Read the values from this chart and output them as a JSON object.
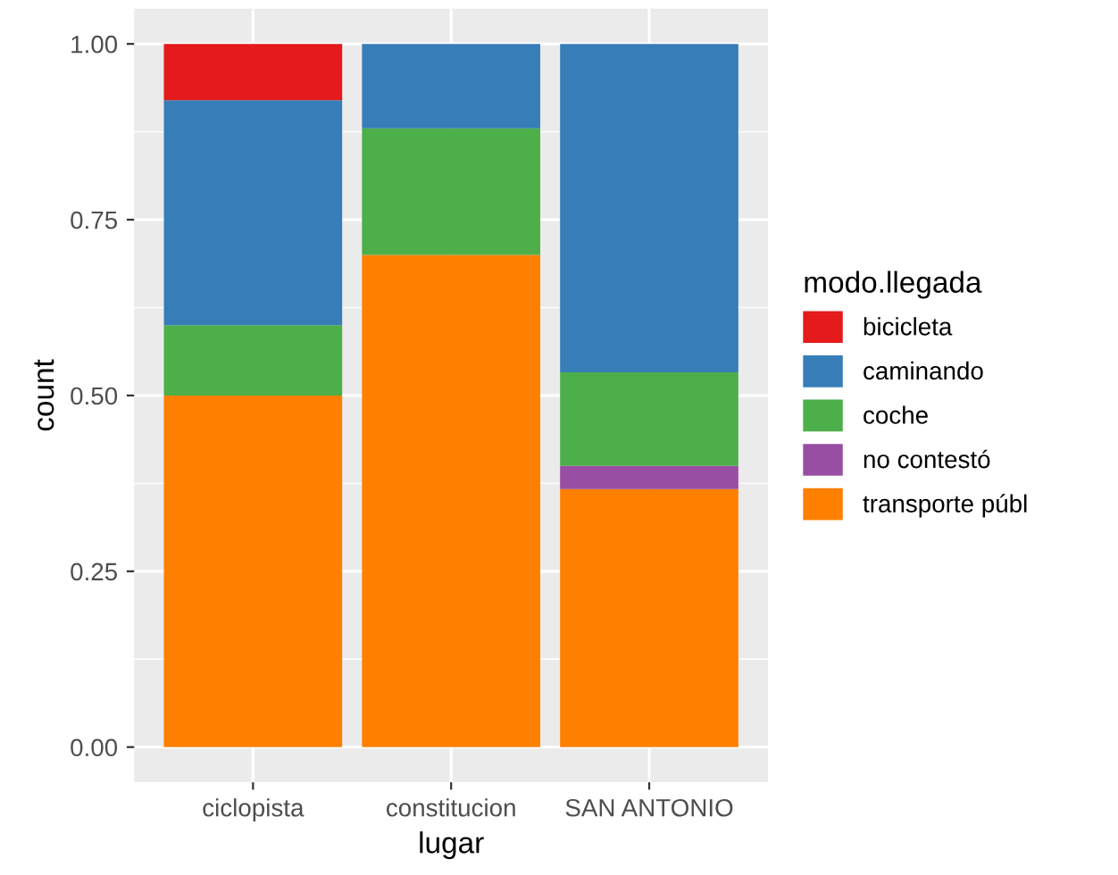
{
  "chart_data": {
    "type": "bar",
    "stacked": true,
    "xlabel": "lugar",
    "ylabel": "count",
    "legend_title": "modo.llegada",
    "categories": [
      "ciclopista",
      "constitucion",
      "SAN ANTONIO"
    ],
    "series": [
      {
        "name": "transporte públ",
        "color": "#ff7f00",
        "values": [
          0.5,
          0.7,
          0.367
        ]
      },
      {
        "name": "no contestó",
        "color": "#984ea3",
        "values": [
          0,
          0,
          0.033
        ]
      },
      {
        "name": "coche",
        "color": "#4daf4a",
        "values": [
          0.1,
          0.18,
          0.133
        ]
      },
      {
        "name": "caminando",
        "color": "#377eb8",
        "values": [
          0.32,
          0.12,
          0.467
        ]
      },
      {
        "name": "bicicleta",
        "color": "#e41a1c",
        "values": [
          0.08,
          0,
          0
        ]
      }
    ],
    "ylim": [
      -0.05,
      1.05
    ],
    "yticks": [
      {
        "value": 0,
        "label": "0.00"
      },
      {
        "value": 0.25,
        "label": "0.25"
      },
      {
        "value": 0.5,
        "label": "0.50"
      },
      {
        "value": 0.75,
        "label": "0.75"
      },
      {
        "value": 1,
        "label": "1.00"
      }
    ],
    "grid": true,
    "legend": "right"
  }
}
